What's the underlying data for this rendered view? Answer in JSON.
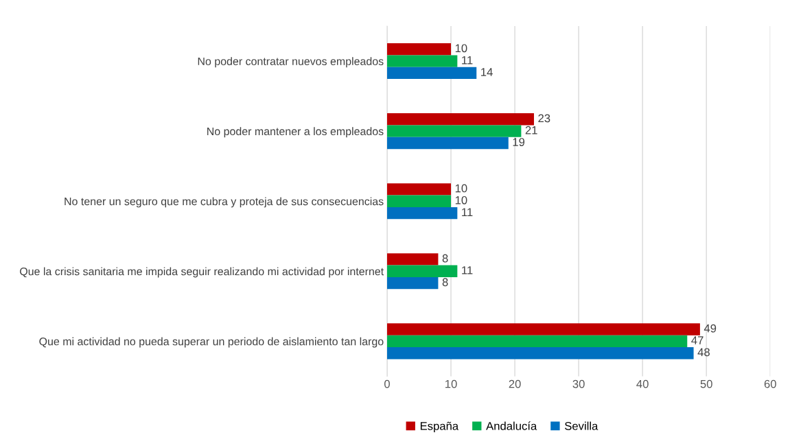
{
  "chart_data": {
    "type": "bar",
    "orientation": "horizontal",
    "categories": [
      "No poder contratar nuevos empleados",
      "No poder mantener a los empleados",
      "No tener un seguro que me cubra y proteja de sus consecuencias",
      "Que la crisis sanitaria me impida seguir realizando mi actividad por internet",
      "Que mi actividad no pueda superar un periodo de aislamiento tan largo"
    ],
    "series": [
      {
        "name": "España",
        "color": "#c00000",
        "values": [
          10,
          23,
          10,
          8,
          49
        ]
      },
      {
        "name": "Andalucía",
        "color": "#00b050",
        "values": [
          11,
          21,
          10,
          11,
          47
        ]
      },
      {
        "name": "Sevilla",
        "color": "#0070c0",
        "values": [
          14,
          19,
          11,
          8,
          48
        ]
      }
    ],
    "xlim": [
      0,
      60
    ],
    "xticks": [
      0,
      10,
      20,
      30,
      40,
      50,
      60
    ],
    "grid": "x",
    "legend": "bottom",
    "data_labels": true
  }
}
